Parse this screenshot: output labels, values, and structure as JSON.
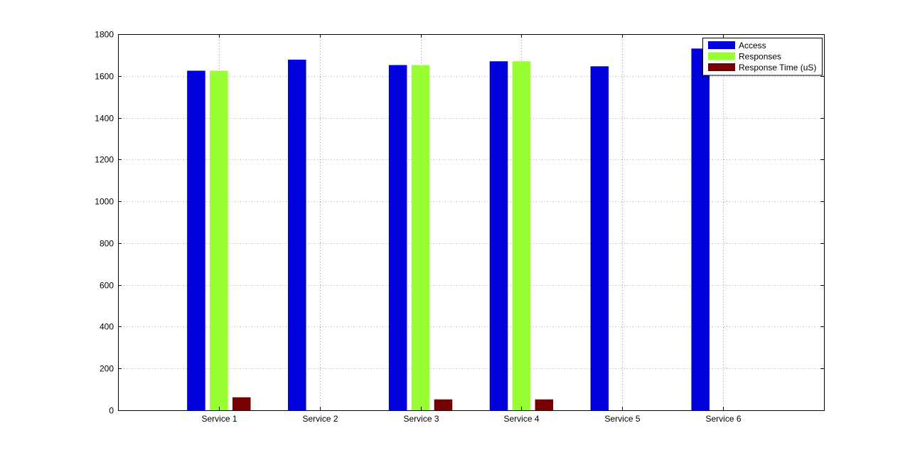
{
  "chart_data": {
    "type": "bar",
    "title": "",
    "xlabel": "",
    "ylabel": "",
    "categories": [
      "Service 1",
      "Service 2",
      "Service 3",
      "Service 4",
      "Service 5",
      "Service 6"
    ],
    "series": [
      {
        "name": "Access",
        "color": "#0000dd",
        "values": [
          1625,
          1678,
          1652,
          1670,
          1646,
          1731
        ]
      },
      {
        "name": "Responses",
        "color": "#99ff33",
        "values": [
          1625,
          0,
          1652,
          1670,
          0,
          0
        ]
      },
      {
        "name": "Response Time (uS)",
        "color": "#770000",
        "values": [
          62,
          0,
          52,
          52,
          0,
          0
        ]
      }
    ],
    "ylim": [
      0,
      1800
    ],
    "yticks": [
      0,
      200,
      400,
      600,
      800,
      1000,
      1200,
      1400,
      1600,
      1800
    ],
    "grid": true,
    "legend_position": "top-right"
  }
}
